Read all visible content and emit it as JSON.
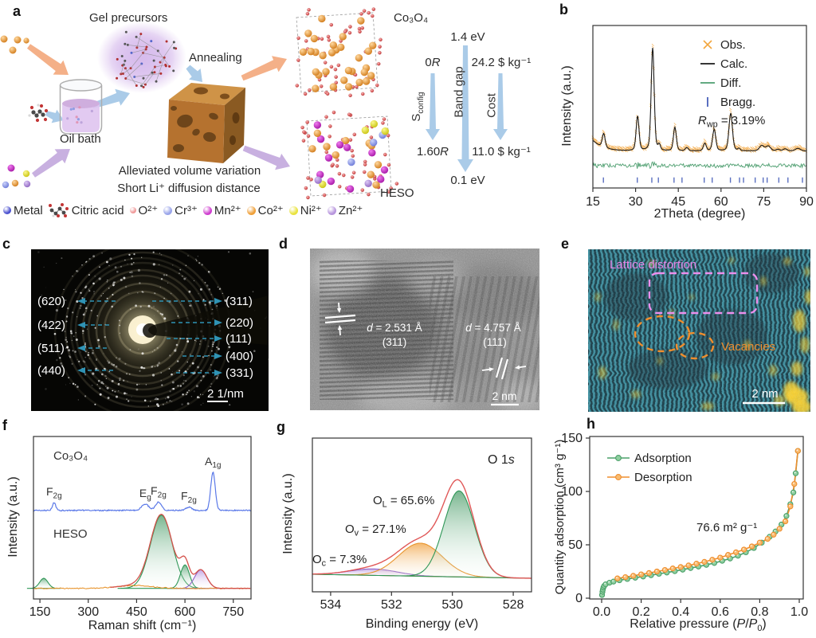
{
  "panel_labels": {
    "a": "a",
    "b": "b",
    "c": "c",
    "d": "d",
    "e": "e",
    "f": "f",
    "g": "g",
    "h": "h"
  },
  "panel_a": {
    "gel_label": "Gel precursors",
    "annealing_label": "Annealing",
    "oil_bath_label": "Oil bath",
    "volume_line1": "Alleviated volume variation",
    "volume_line2": "Short Li⁺ diffusion distance",
    "co3o4_label": "Co₃O₄",
    "heso_label": "HESO",
    "metrics": {
      "sconfig": {
        "label": [
          [
            "n",
            "S"
          ],
          [
            "sub",
            "config"
          ]
        ],
        "from": [
          [
            "n",
            "0"
          ],
          [
            "it",
            "R"
          ]
        ],
        "to": [
          [
            "n",
            "1.60"
          ],
          [
            "it",
            "R"
          ]
        ]
      },
      "bandgap": {
        "label": [
          [
            "n",
            "Band gap"
          ]
        ],
        "from": [
          [
            "n",
            "1.4 eV"
          ]
        ],
        "to": [
          [
            "n",
            "0.1 eV"
          ]
        ]
      },
      "cost": {
        "label": [
          [
            "n",
            "Cost"
          ]
        ],
        "from": [
          [
            "n",
            "24.2 $ kg⁻¹"
          ]
        ],
        "to": [
          [
            "n",
            "11.0 $ kg⁻¹"
          ]
        ]
      }
    },
    "legend": [
      {
        "label": "Metal",
        "type": "sphere",
        "color": "#4a50cf",
        "size": 10
      },
      {
        "label": "Citric acid",
        "type": "molecule"
      },
      {
        "label": "O²⁺",
        "type": "sphere",
        "color": "#ef9a9a",
        "size": 8
      },
      {
        "label": "Cr³⁺",
        "type": "sphere",
        "color": "#9aa5ea",
        "size": 11
      },
      {
        "label": "Mn²⁺",
        "type": "sphere",
        "color": "#cf3fcf",
        "size": 11
      },
      {
        "label": "Co²⁺",
        "type": "sphere",
        "color": "#efa039",
        "size": 11
      },
      {
        "label": "Ni²⁺",
        "type": "sphere",
        "color": "#e9e33e",
        "size": 11
      },
      {
        "label": "Zn²⁺",
        "type": "sphere",
        "color": "#b795dd",
        "size": 11
      }
    ]
  },
  "panel_c": {
    "left_labels": [
      "(620)",
      "(422)",
      "(511)",
      "(440)"
    ],
    "right_labels": [
      "(311)",
      "(220)",
      "(111)",
      "(400)",
      "(331)"
    ],
    "scale_label": "2 1/nm"
  },
  "panel_d": {
    "m1_d": [
      [
        "it",
        "d"
      ],
      [
        "n",
        " = 2.531 Å"
      ]
    ],
    "m1_plane": "(311)",
    "m2_d": [
      [
        "it",
        "d"
      ],
      [
        "n",
        " = 4.757 Å"
      ]
    ],
    "m2_plane": "(111)",
    "scale_label": "2 nm"
  },
  "panel_e": {
    "label1": "Lattice distortion",
    "label2": "Vacancies",
    "scale_label": "2 nm",
    "label1_color": "#e583e5",
    "label2_color": "#ef8e2e"
  },
  "chart_data": [
    {
      "id": "xrd",
      "type": "line",
      "panel": "b",
      "xlabel": "2Theta (degree)",
      "ylabel": "Intensity (a.u.)",
      "xlim": [
        15,
        90
      ],
      "xticks": [
        15,
        30,
        45,
        60,
        75,
        90
      ],
      "legend": [
        {
          "name": "Obs.",
          "color": "#f2a53c",
          "marker": "x"
        },
        {
          "name": "Calc.",
          "color": "#1a1a1a",
          "marker": "line"
        },
        {
          "name": "Diff.",
          "color": "#4d9e6f",
          "marker": "line"
        },
        {
          "name": "Bragg.",
          "color": "#5a6fc0",
          "marker": "tick"
        }
      ],
      "rwp": [
        [
          "it",
          "R"
        ],
        [
          "sub",
          "wp"
        ],
        [
          "n",
          " = 3.19%"
        ]
      ],
      "peaks": [
        [
          18.8,
          0.13,
          0.5
        ],
        [
          30.7,
          0.32,
          0.5
        ],
        [
          36.0,
          0.96,
          0.52
        ],
        [
          38.3,
          0.05,
          0.4
        ],
        [
          43.8,
          0.22,
          0.5
        ],
        [
          48.0,
          0.03,
          0.5
        ],
        [
          54.3,
          0.07,
          0.5
        ],
        [
          57.6,
          0.2,
          0.55
        ],
        [
          63.4,
          0.35,
          0.6
        ],
        [
          66.3,
          0.02,
          0.4
        ],
        [
          74.3,
          0.05,
          0.8
        ],
        [
          76.6,
          0.045,
          0.8
        ],
        [
          80.0,
          0.015,
          0.6
        ],
        [
          82.5,
          0.02,
          0.7
        ],
        [
          87.0,
          0.025,
          0.9
        ]
      ],
      "bragg_positions": [
        18.7,
        30.6,
        35.7,
        38.0,
        43.5,
        46.3,
        54.1,
        56.9,
        63.3,
        66.5,
        67.9,
        72.0,
        74.8,
        76.2,
        80.3,
        83.5,
        88.6
      ],
      "background": {
        "amp": 0.1,
        "decay": 3.5,
        "offset": 0.041
      }
    },
    {
      "id": "raman",
      "type": "line",
      "panel": "f",
      "xlabel": "Raman shift (cm⁻¹)",
      "ylabel": "Intensity (a.u.)",
      "xlim": [
        130,
        805
      ],
      "xticks": [
        150,
        300,
        450,
        600,
        750
      ],
      "series": [
        {
          "name": "Co₃O₄",
          "color": "#5b79e8",
          "baseline": 0.455,
          "peaks": [
            {
              "center": 194,
              "height": 0.048,
              "width": 5,
              "label": [
                [
                  "n",
                  "F"
                ],
                [
                  "sub",
                  "2g"
                ]
              ]
            },
            {
              "center": 477,
              "height": 0.038,
              "width": 11,
              "label": [
                [
                  "n",
                  "E"
                ],
                [
                  "sub",
                  "g"
                ]
              ]
            },
            {
              "center": 518,
              "height": 0.052,
              "width": 9,
              "label": [
                [
                  "n",
                  "F"
                ],
                [
                  "sub",
                  "2g"
                ]
              ]
            },
            {
              "center": 612,
              "height": 0.02,
              "width": 9,
              "label": [
                [
                  "n",
                  "F"
                ],
                [
                  "sub",
                  "2g"
                ]
              ]
            },
            {
              "center": 687,
              "height": 0.235,
              "width": 7,
              "label": [
                [
                  "n",
                  "A"
                ],
                [
                  "sub",
                  "1g"
                ]
              ]
            }
          ]
        },
        {
          "name": "HESO",
          "baseline": 0.935,
          "envelope_color": "#d4524c",
          "components": [
            {
              "color": "green",
              "center": 162,
              "height": 0.062,
              "width": 13
            },
            {
              "color": "green",
              "center": 527,
              "height": 0.45,
              "width": 34
            },
            {
              "color": "green",
              "center": 600,
              "height": 0.145,
              "width": 14
            },
            {
              "color": "purple",
              "center": 649,
              "height": 0.115,
              "width": 19
            },
            {
              "color": "orange",
              "center": 445,
              "height": 0.018,
              "width": 55
            }
          ]
        }
      ]
    },
    {
      "id": "xps",
      "type": "area",
      "panel": "g",
      "title": [
        [
          "n",
          "O 1"
        ],
        [
          "it",
          "s"
        ]
      ],
      "xlabel": "Binding energy (eV)",
      "ylabel": "Intensity (a.u.)",
      "xlim": [
        534.6,
        527.4
      ],
      "xticks": [
        534,
        532,
        530,
        528
      ],
      "envelope_color": "#e05858",
      "components": [
        {
          "label": [
            [
              "n",
              "O"
            ],
            [
              "sub",
              "L"
            ],
            [
              "n",
              " = 65.6%"
            ]
          ],
          "center": 529.78,
          "height": 0.56,
          "width": 0.5,
          "color": "green"
        },
        {
          "label": [
            [
              "n",
              "O"
            ],
            [
              "sub",
              "v"
            ],
            [
              "n",
              " = 27.1%"
            ]
          ],
          "center": 531.05,
          "height": 0.215,
          "width": 0.72,
          "color": "orange"
        },
        {
          "label": [
            [
              "n",
              "O"
            ],
            [
              "sub",
              "c"
            ],
            [
              "n",
              " = 7.3%"
            ]
          ],
          "center": 532.6,
          "height": 0.042,
          "width": 0.78,
          "color": "purple"
        }
      ]
    },
    {
      "id": "bet",
      "type": "scatter-line",
      "panel": "h",
      "xlabel": [
        [
          "n",
          "Relative pressure ("
        ],
        [
          "it",
          "P"
        ],
        [
          "n",
          "/"
        ],
        [
          "it",
          "P"
        ],
        [
          "sub",
          "0"
        ],
        [
          "n",
          ")"
        ]
      ],
      "ylabel": "Quantity adsorption (cm³ g⁻¹)",
      "xticks": [
        0.0,
        0.2,
        0.4,
        0.6,
        0.8,
        1.0
      ],
      "yticks": [
        0,
        50,
        100,
        150
      ],
      "ylim": [
        0,
        150
      ],
      "annotation": "76.6 m² g⁻¹",
      "series": [
        {
          "name": "Adsorption",
          "color": "#4ba06a",
          "fill": "#8fcf9f",
          "points": [
            [
              0.002,
              3
            ],
            [
              0.004,
              6
            ],
            [
              0.006,
              8
            ],
            [
              0.009,
              10
            ],
            [
              0.013,
              11.5
            ],
            [
              0.02,
              13
            ],
            [
              0.04,
              14.5
            ],
            [
              0.06,
              15.5
            ],
            [
              0.09,
              16.8
            ],
            [
              0.13,
              18
            ],
            [
              0.17,
              19.2
            ],
            [
              0.21,
              20.3
            ],
            [
              0.25,
              21.5
            ],
            [
              0.29,
              22.8
            ],
            [
              0.33,
              24
            ],
            [
              0.37,
              25.3
            ],
            [
              0.41,
              26.7
            ],
            [
              0.45,
              28.2
            ],
            [
              0.49,
              29.6
            ],
            [
              0.53,
              31.2
            ],
            [
              0.57,
              33
            ],
            [
              0.61,
              35
            ],
            [
              0.65,
              37.2
            ],
            [
              0.69,
              39.8
            ],
            [
              0.73,
              43
            ],
            [
              0.77,
              47
            ],
            [
              0.81,
              52
            ],
            [
              0.85,
              57.5
            ],
            [
              0.88,
              62.5
            ],
            [
              0.91,
              69
            ],
            [
              0.935,
              77
            ],
            [
              0.955,
              88
            ],
            [
              0.97,
              99
            ],
            [
              0.982,
              117
            ],
            [
              0.993,
              138
            ]
          ]
        },
        {
          "name": "Desorption",
          "color": "#ef8e2e",
          "fill": "#f8bc72",
          "points": [
            [
              0.993,
              138
            ],
            [
              0.975,
              107
            ],
            [
              0.955,
              86
            ],
            [
              0.93,
              72
            ],
            [
              0.9,
              65
            ],
            [
              0.87,
              59.5
            ],
            [
              0.84,
              55.5
            ],
            [
              0.8,
              52
            ],
            [
              0.76,
              48.5
            ],
            [
              0.72,
              45.5
            ],
            [
              0.68,
              43
            ],
            [
              0.64,
              40.5
            ],
            [
              0.6,
              38
            ],
            [
              0.56,
              36
            ],
            [
              0.52,
              34
            ],
            [
              0.48,
              32.3
            ],
            [
              0.44,
              30.7
            ],
            [
              0.4,
              29.2
            ],
            [
              0.36,
              27.8
            ],
            [
              0.32,
              26.4
            ],
            [
              0.28,
              25
            ],
            [
              0.24,
              23.6
            ],
            [
              0.2,
              22.3
            ],
            [
              0.16,
              21
            ],
            [
              0.12,
              19.7
            ],
            [
              0.08,
              18.5
            ]
          ]
        }
      ]
    }
  ]
}
